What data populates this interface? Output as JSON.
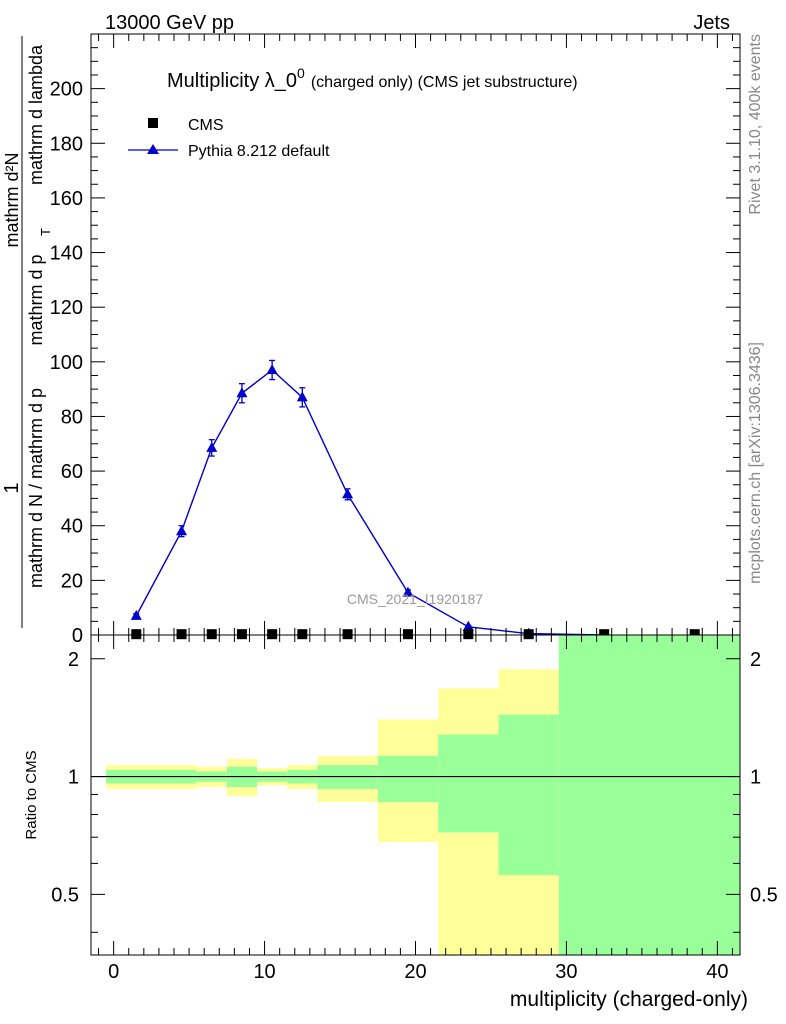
{
  "header": {
    "left": "13000 GeV pp",
    "right": "Jets"
  },
  "side_labels": {
    "rivet": "Rivet 3.1.10,  400k events",
    "mcplots": "mcplots.cern.ch [arXiv:1306.3436]"
  },
  "watermark": "CMS_2021_I1920187",
  "colors": {
    "pythia": "#0000cc",
    "band_inner": "#99ff99",
    "band_outer": "#ffff99",
    "data": "#000000"
  },
  "chart_data": [
    {
      "type": "line",
      "title_main": "Multiplicity λ_0",
      "title_sup": "0",
      "title_paren": "(charged only) (CMS jet substructure)",
      "ylabel_num": "1",
      "ylabel_den": "mathrm d N / mathrm d p",
      "ylabel_big_num": "mathrm d²N",
      "ylabel_big_den": "mathrm d p",
      "ylabel_big_tail": "mathrm d lambda",
      "ylabel_sub": "T",
      "xlim": [
        -1.5,
        41.5
      ],
      "ylim": [
        0,
        220
      ],
      "yticks": [
        0,
        20,
        40,
        60,
        80,
        100,
        120,
        140,
        160,
        180,
        200
      ],
      "ytick_labels": [
        "0",
        "20",
        "40",
        "60",
        "80",
        "100",
        "120",
        "140",
        "160",
        "180",
        "200"
      ],
      "legend": [
        {
          "name": "CMS",
          "marker": "square"
        },
        {
          "name": "Pythia 8.212 default",
          "marker": "triangle"
        }
      ],
      "series": [
        {
          "name": "CMS",
          "x": [
            1.5,
            4.5,
            6.5,
            8.5,
            10.5,
            12.5,
            15.5,
            19.5,
            23.5,
            27.5,
            32.5,
            38.5
          ],
          "y": [
            0.3,
            0.3,
            0.3,
            0.3,
            0.3,
            0.3,
            0.3,
            0.3,
            0.3,
            0.3,
            0.3,
            0.3
          ]
        },
        {
          "name": "Pythia 8.212 default",
          "x": [
            1.5,
            4.5,
            6.5,
            8.5,
            10.5,
            12.5,
            15.5,
            19.5,
            23.5,
            27.5,
            32.5
          ],
          "y": [
            7,
            38,
            68.5,
            88.5,
            97,
            87,
            51.5,
            15.5,
            3,
            0.5,
            0
          ],
          "err": [
            0.8,
            2,
            3,
            3.5,
            3.5,
            3.5,
            2,
            1,
            0.5,
            0.2,
            0
          ]
        }
      ]
    },
    {
      "type": "area",
      "ylabel": "Ratio to CMS",
      "xlabel": "multiplicity (charged-only)",
      "xlim": [
        -1.5,
        41.5
      ],
      "ylim": [
        0.35,
        2.3
      ],
      "yticks": [
        0.5,
        1,
        2
      ],
      "ytick_labels": [
        "0.5",
        "1",
        "2"
      ],
      "xticks": [
        0,
        10,
        20,
        30,
        40
      ],
      "xtick_labels": [
        "0",
        "10",
        "20",
        "30",
        "40"
      ],
      "reference_line": 1,
      "bins": [
        {
          "lo": -0.5,
          "hi": 3.5,
          "inner": [
            0.96,
            1.04
          ],
          "outer": [
            0.93,
            1.07
          ]
        },
        {
          "lo": 3.5,
          "hi": 5.5,
          "inner": [
            0.96,
            1.04
          ],
          "outer": [
            0.93,
            1.07
          ]
        },
        {
          "lo": 5.5,
          "hi": 7.5,
          "inner": [
            0.97,
            1.03
          ],
          "outer": [
            0.94,
            1.06
          ]
        },
        {
          "lo": 7.5,
          "hi": 9.5,
          "inner": [
            0.94,
            1.06
          ],
          "outer": [
            0.89,
            1.11
          ]
        },
        {
          "lo": 9.5,
          "hi": 11.5,
          "inner": [
            0.97,
            1.03
          ],
          "outer": [
            0.95,
            1.05
          ]
        },
        {
          "lo": 11.5,
          "hi": 13.5,
          "inner": [
            0.96,
            1.04
          ],
          "outer": [
            0.93,
            1.07
          ]
        },
        {
          "lo": 13.5,
          "hi": 17.5,
          "inner": [
            0.93,
            1.07
          ],
          "outer": [
            0.86,
            1.13
          ]
        },
        {
          "lo": 17.5,
          "hi": 21.5,
          "inner": [
            0.86,
            1.13
          ],
          "outer": [
            0.68,
            1.4
          ]
        },
        {
          "lo": 21.5,
          "hi": 25.5,
          "inner": [
            0.72,
            1.28
          ],
          "outer": [
            0.35,
            1.68
          ]
        },
        {
          "lo": 25.5,
          "hi": 29.5,
          "inner": [
            0.56,
            1.44
          ],
          "outer": [
            0.35,
            1.88
          ]
        },
        {
          "lo": 29.5,
          "hi": 41.5,
          "inner": [
            0.35,
            2.3
          ],
          "outer": [
            0.35,
            2.3
          ]
        }
      ]
    }
  ]
}
